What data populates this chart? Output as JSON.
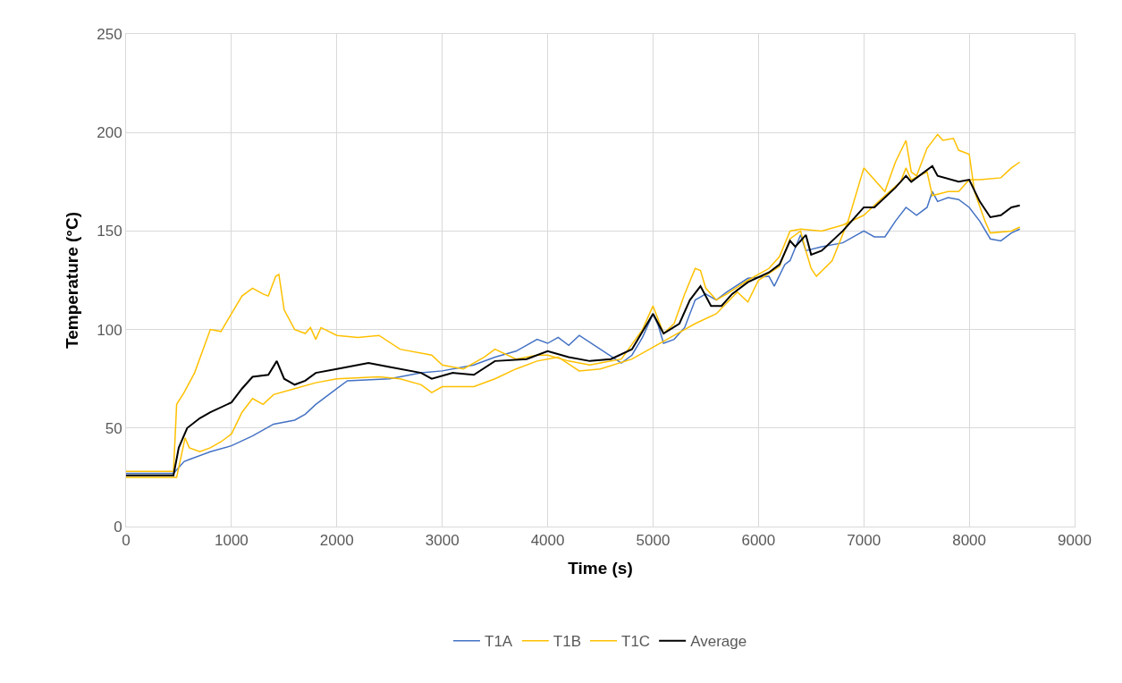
{
  "chart_data": {
    "type": "line",
    "xlabel": "Time (s)",
    "ylabel": "Temperature (°C)",
    "xlim": [
      0,
      9000
    ],
    "xticks": [
      0,
      1000,
      2000,
      3000,
      4000,
      5000,
      6000,
      7000,
      8000,
      9000
    ],
    "ylim": [
      0,
      250
    ],
    "yticks": [
      0,
      50,
      100,
      150,
      200,
      250
    ],
    "grid": true,
    "legend": "bottom",
    "marker": "none",
    "line_style": "solid",
    "series": [
      {
        "name": "T1A",
        "color": "#4472c4",
        "x": [
          0,
          450,
          500,
          550,
          600,
          800,
          1000,
          1200,
          1400,
          1600,
          1700,
          1800,
          2000,
          2100,
          2500,
          2800,
          3000,
          3300,
          3500,
          3700,
          3900,
          4000,
          4100,
          4200,
          4300,
          4500,
          4700,
          4800,
          4900,
          5000,
          5050,
          5100,
          5200,
          5300,
          5400,
          5500,
          5600,
          5700,
          5900,
          6100,
          6150,
          6250,
          6300,
          6400,
          6450,
          6600,
          6800,
          7000,
          7100,
          7200,
          7300,
          7400,
          7500,
          7600,
          7650,
          7700,
          7800,
          7900,
          8000,
          8100,
          8200,
          8300,
          8400,
          8480
        ],
        "values": [
          27,
          27,
          30,
          33,
          34,
          38,
          41,
          46,
          52,
          54,
          57,
          62,
          70,
          74,
          75,
          78,
          79,
          82,
          86,
          89,
          95,
          93,
          96,
          92,
          97,
          90,
          83,
          87,
          96,
          108,
          102,
          93,
          95,
          101,
          115,
          118,
          115,
          119,
          126,
          127,
          122,
          133,
          135,
          148,
          140,
          142,
          144,
          150,
          147,
          147,
          155,
          162,
          158,
          162,
          170,
          165,
          167,
          166,
          162,
          155,
          146,
          145,
          149,
          151
        ]
      },
      {
        "name": "T1B",
        "color": "#ffc000",
        "x": [
          0,
          450,
          480,
          550,
          650,
          800,
          900,
          1000,
          1100,
          1200,
          1300,
          1350,
          1420,
          1450,
          1500,
          1600,
          1700,
          1750,
          1800,
          1850,
          2000,
          2200,
          2400,
          2600,
          2900,
          3000,
          3200,
          3400,
          3500,
          3700,
          3900,
          4000,
          4200,
          4400,
          4500,
          4700,
          4900,
          5000,
          5100,
          5200,
          5300,
          5400,
          5450,
          5500,
          5600,
          5700,
          5900,
          6100,
          6200,
          6300,
          6400,
          6600,
          6800,
          7000,
          7200,
          7350,
          7400,
          7450,
          7600,
          7650,
          7800,
          7900,
          8000,
          8100,
          8300,
          8400,
          8480
        ],
        "values": [
          28,
          28,
          62,
          68,
          78,
          100,
          99,
          108,
          117,
          121,
          118,
          117,
          127,
          128,
          110,
          100,
          98,
          101,
          95,
          101,
          97,
          96,
          97,
          90,
          87,
          82,
          80,
          86,
          90,
          85,
          87,
          87,
          84,
          82,
          83,
          85,
          100,
          112,
          98,
          103,
          118,
          131,
          130,
          121,
          115,
          118,
          125,
          131,
          137,
          150,
          151,
          150,
          153,
          158,
          168,
          175,
          182,
          176,
          180,
          168,
          170,
          170,
          176,
          176,
          177,
          182,
          185
        ]
      },
      {
        "name": "T1C",
        "color": "#ffc000",
        "x": [
          0,
          480,
          560,
          600,
          700,
          800,
          900,
          1000,
          1100,
          1200,
          1300,
          1400,
          1600,
          1800,
          2000,
          2400,
          2600,
          2800,
          2900,
          3000,
          3300,
          3500,
          3700,
          3900,
          4100,
          4300,
          4500,
          4800,
          5000,
          5200,
          5400,
          5600,
          5800,
          5900,
          6000,
          6200,
          6300,
          6400,
          6450,
          6500,
          6550,
          6700,
          6850,
          7000,
          7100,
          7200,
          7300,
          7400,
          7450,
          7500,
          7600,
          7700,
          7750,
          7850,
          7900,
          8000,
          8050,
          8150,
          8200,
          8400,
          8480
        ],
        "values": [
          25,
          25,
          45,
          40,
          38,
          40,
          43,
          47,
          58,
          65,
          62,
          67,
          70,
          73,
          75,
          76,
          75,
          72,
          68,
          71,
          71,
          75,
          80,
          84,
          86,
          79,
          80,
          85,
          91,
          97,
          103,
          108,
          119,
          114,
          125,
          132,
          146,
          150,
          140,
          131,
          127,
          135,
          155,
          182,
          176,
          170,
          185,
          196,
          180,
          178,
          192,
          199,
          196,
          197,
          191,
          189,
          170,
          155,
          149,
          150,
          152
        ]
      },
      {
        "name": "Average",
        "color": "#000000",
        "x": [
          0,
          450,
          500,
          580,
          700,
          800,
          1000,
          1100,
          1200,
          1350,
          1430,
          1500,
          1600,
          1700,
          1800,
          2000,
          2300,
          2500,
          2800,
          2900,
          3100,
          3300,
          3500,
          3800,
          4000,
          4200,
          4400,
          4600,
          4800,
          5000,
          5100,
          5250,
          5350,
          5450,
          5550,
          5650,
          5750,
          5900,
          6100,
          6200,
          6300,
          6350,
          6450,
          6500,
          6600,
          6800,
          7000,
          7100,
          7300,
          7400,
          7450,
          7650,
          7700,
          7900,
          8000,
          8100,
          8200,
          8300,
          8400,
          8480
        ],
        "values": [
          26,
          26,
          40,
          50,
          55,
          58,
          63,
          70,
          76,
          77,
          84,
          75,
          72,
          74,
          78,
          80,
          83,
          81,
          78,
          75,
          78,
          77,
          84,
          85,
          89,
          86,
          84,
          85,
          90,
          108,
          98,
          103,
          115,
          122,
          112,
          112,
          118,
          124,
          129,
          133,
          145,
          142,
          148,
          138,
          140,
          150,
          162,
          162,
          172,
          178,
          175,
          183,
          178,
          175,
          176,
          165,
          157,
          158,
          162,
          163
        ]
      }
    ]
  }
}
